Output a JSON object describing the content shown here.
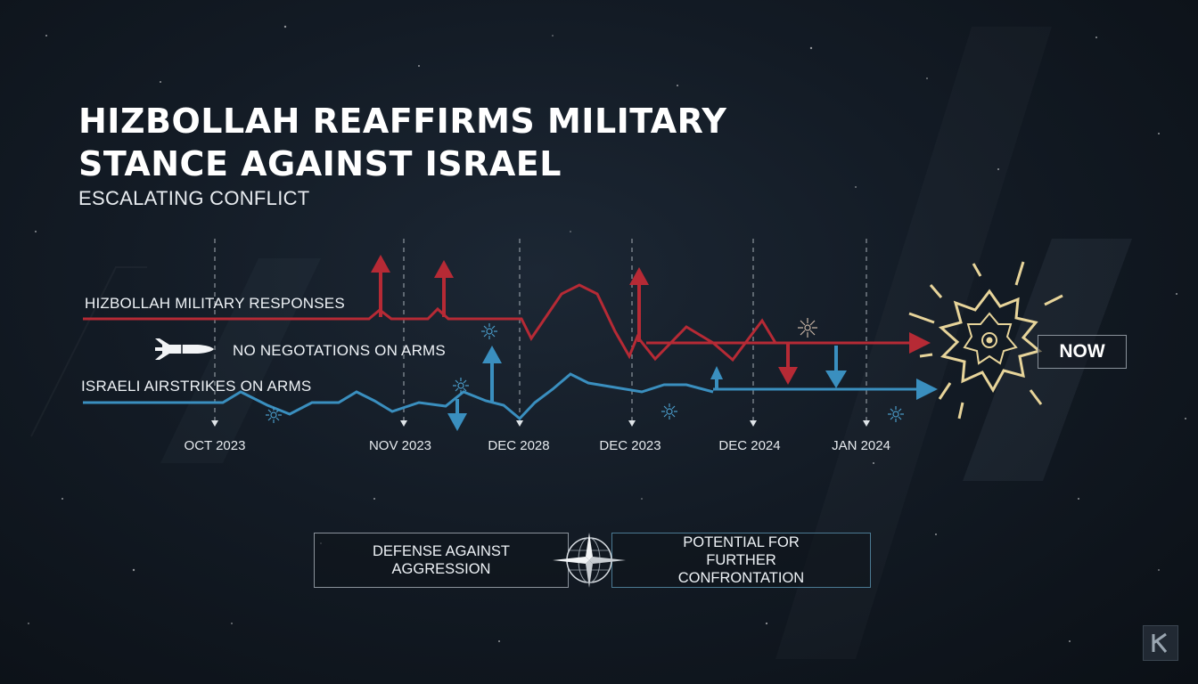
{
  "title": "HIZBOLLAH REAFFIRMS MILITARY STANCE AGAINST ISRAEL",
  "subtitle": "ESCALATING CONFLICT",
  "series": {
    "hizbollah": "HIZBOLLAH MILITARY RESPONSES",
    "no_negotiations": "NO NEGOTATIONS ON ARMS",
    "israeli": "ISRAELI AIRSTRIKES ON ARMS"
  },
  "timeline": {
    "dates": [
      "OCT 2023",
      "NOV 2023",
      "DEC 2028",
      "DEC 2023",
      "DEC 2024",
      "JAN 2024"
    ],
    "now_label": "NOW"
  },
  "bottom": {
    "left": "DEFENSE AGAINST AGGRESSION",
    "right": "POTENTIAL FOR FURTHER CONFRONTATION"
  },
  "colors": {
    "red": "#b62a35",
    "blue": "#3a8fbf",
    "burst": "#e7d49a",
    "background": "#131b25"
  },
  "icons": {
    "missile": "missile-icon",
    "burst": "explosion-icon",
    "compass": "compass-icon",
    "watermark": "logo-icon"
  }
}
